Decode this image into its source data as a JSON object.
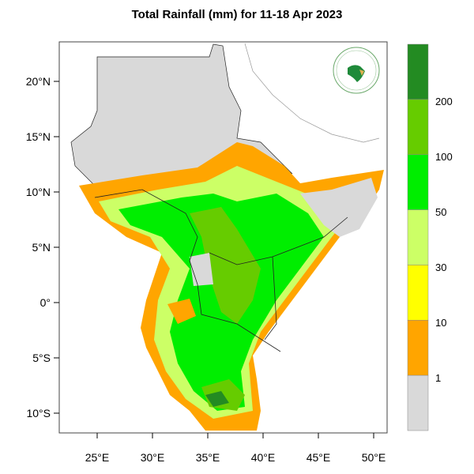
{
  "title": "Total Rainfall (mm) for 11-18 Apr 2023",
  "logo_text": "IGAD",
  "map": {
    "lon_ticks": [
      "25°E",
      "30°E",
      "35°E",
      "40°E",
      "45°E",
      "50°E"
    ],
    "lat_ticks": [
      "20°N",
      "15°N",
      "10°N",
      "5°N",
      "0°",
      "5°S",
      "10°S"
    ]
  },
  "colorbar": {
    "labels": [
      "200",
      "100",
      "50",
      "30",
      "10",
      "1"
    ],
    "colors": [
      "#238b22",
      "#66cc00",
      "#00ee00",
      "#ccff66",
      "#ffff00",
      "#ffa500",
      "#d9d9d9"
    ]
  }
}
